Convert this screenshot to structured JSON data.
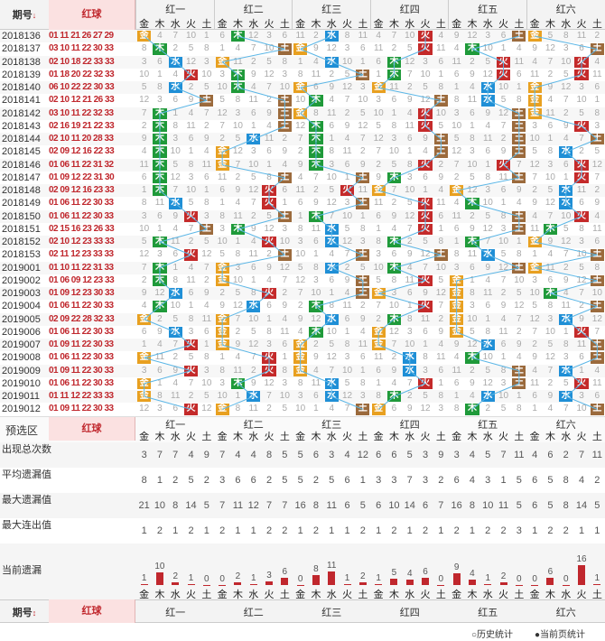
{
  "header": {
    "issue_label": "期号",
    "issue_sort_icon": "↓",
    "red_label": "红球",
    "groups": [
      "红一",
      "红二",
      "红三",
      "红四",
      "红五",
      "红六"
    ],
    "elements": [
      "金",
      "木",
      "水",
      "火",
      "土"
    ]
  },
  "issues": [
    "2018136",
    "2018137",
    "2018138",
    "2018139",
    "2018140",
    "2018141",
    "2018142",
    "2018143",
    "2018144",
    "2018145",
    "2018146",
    "2018147",
    "2018148",
    "2018149",
    "2018150",
    "2018151",
    "2018152",
    "2018153",
    "2019001",
    "2019002",
    "2019003",
    "2019004",
    "2019005",
    "2019006",
    "2019007",
    "2019008",
    "2019009",
    "2019010",
    "2019011",
    "2019012"
  ],
  "red_balls": [
    "01 11 21 26 27 29",
    "03 10 11 22 30 33",
    "02 10 18 22 33 33",
    "01 18 20 22 32 33",
    "06 10 22 22 30 33",
    "02 10 12 21 26 33",
    "03 10 11 22 32 33",
    "02 16 19 21 22 33",
    "02 10 11 20 28 33",
    "02 09 12 16 22 33",
    "01 06 11 22 31 32",
    "01 09 12 22 31 30",
    "02 09 12 16 23 33",
    "01 06 11 22 30 33",
    "01 06 11 22 30 33",
    "02 15 16 23 26 33",
    "02 10 12 23 33 33",
    "02 11 12 23 33 33",
    "01 10 11 22 31 33",
    "01 06 09 12 23 33",
    "01 09 12 23 30 33",
    "01 06 11 22 30 33",
    "02 09 22 28 32 33",
    "01 06 11 22 30 33",
    "01 09 11 22 30 33",
    "01 06 11 22 30 33",
    "01 09 11 22 30 33",
    "01 06 11 22 30 33",
    "01 11 12 22 33 33",
    "01 09 11 22 30 33"
  ],
  "presel": {
    "label": "预选区",
    "red_label": "红球"
  },
  "stats": {
    "labels": [
      "出现总次数",
      "平均遗漏值",
      "最大遗漏值",
      "最大连出值",
      "当前遗漏"
    ],
    "appear": [
      3,
      7,
      7,
      4,
      9,
      7,
      4,
      4,
      8,
      5,
      5,
      6,
      3,
      4,
      12,
      6,
      6,
      5,
      3,
      9,
      3,
      4,
      5,
      7,
      11,
      4,
      6,
      2,
      7,
      11
    ],
    "avg": [
      8,
      1,
      2,
      5,
      2,
      3,
      6,
      6,
      2,
      5,
      5,
      2,
      5,
      6,
      1,
      3,
      3,
      7,
      3,
      2,
      6,
      4,
      3,
      1,
      5,
      6,
      5,
      8,
      4,
      2
    ],
    "maxmiss": [
      21,
      10,
      8,
      14,
      5,
      7,
      11,
      12,
      7,
      7,
      16,
      8,
      11,
      6,
      5,
      6,
      10,
      14,
      6,
      7,
      16,
      8,
      10,
      11,
      5,
      6,
      5,
      8,
      14,
      5
    ],
    "maxcont": [
      1,
      2,
      1,
      2,
      1,
      2,
      1,
      1,
      2,
      2,
      1,
      2,
      1,
      1,
      2,
      1,
      2,
      1,
      2,
      1,
      2,
      1,
      2,
      2,
      3,
      1,
      2,
      2,
      1,
      1
    ],
    "current": [
      1,
      10,
      2,
      1,
      0,
      0,
      2,
      1,
      3,
      6,
      0,
      8,
      11,
      1,
      2,
      1,
      5,
      4,
      6,
      0,
      9,
      4,
      1,
      2,
      0,
      0,
      6,
      0,
      16,
      1
    ]
  },
  "footer": {
    "issue_label": "期号",
    "red_label": "红球",
    "hist_label": "历史统计",
    "page_label": "当前页统计"
  },
  "chart_data": {
    "type": "table",
    "title": "",
    "marks": [
      [
        0,
        0
      ],
      [
        0,
        1
      ],
      [
        0,
        2
      ],
      [
        0,
        3
      ],
      [
        0,
        4
      ],
      [
        0,
        0
      ],
      [
        1,
        1
      ],
      [
        1,
        4
      ],
      [
        1,
        0
      ],
      [
        1,
        3
      ],
      [
        1,
        1
      ],
      [
        1,
        4
      ],
      [
        2,
        2
      ],
      [
        2,
        0
      ],
      [
        2,
        2
      ],
      [
        2,
        1
      ],
      [
        2,
        3
      ],
      [
        2,
        3
      ],
      [
        3,
        3
      ],
      [
        3,
        1
      ],
      [
        3,
        4
      ],
      [
        3,
        1
      ],
      [
        3,
        3
      ],
      [
        3,
        3
      ],
      [
        4,
        2
      ],
      [
        4,
        1
      ],
      [
        4,
        0
      ],
      [
        4,
        0
      ],
      [
        4,
        2
      ],
      [
        4,
        0
      ],
      [
        5,
        4
      ],
      [
        5,
        4
      ],
      [
        5,
        1
      ],
      [
        5,
        4
      ],
      [
        5,
        2
      ],
      [
        5,
        0
      ],
      [
        6,
        1
      ],
      [
        6,
        4
      ],
      [
        6,
        0
      ],
      [
        6,
        3
      ],
      [
        6,
        4
      ],
      [
        6,
        0
      ],
      [
        7,
        1
      ],
      [
        7,
        4
      ],
      [
        7,
        1
      ],
      [
        7,
        3
      ],
      [
        7,
        4
      ],
      [
        7,
        3
      ],
      [
        8,
        1
      ],
      [
        8,
        2
      ],
      [
        8,
        1
      ],
      [
        8,
        4
      ],
      [
        8,
        4
      ],
      [
        8,
        4
      ],
      [
        9,
        1
      ],
      [
        9,
        0
      ],
      [
        9,
        1
      ],
      [
        9,
        4
      ],
      [
        9,
        4
      ],
      [
        9,
        2
      ],
      [
        10,
        1
      ],
      [
        10,
        0
      ],
      [
        10,
        1
      ],
      [
        10,
        3
      ],
      [
        10,
        3
      ],
      [
        10,
        3
      ],
      [
        11,
        1
      ],
      [
        11,
        4
      ],
      [
        11,
        4
      ],
      [
        11,
        1
      ],
      [
        11,
        4
      ],
      [
        11,
        3
      ],
      [
        12,
        1
      ],
      [
        12,
        3
      ],
      [
        12,
        3
      ],
      [
        12,
        0
      ],
      [
        12,
        0
      ],
      [
        12,
        2
      ],
      [
        13,
        2
      ],
      [
        13,
        3
      ],
      [
        13,
        4
      ],
      [
        13,
        3
      ],
      [
        13,
        1
      ],
      [
        13,
        2
      ],
      [
        14,
        3
      ],
      [
        14,
        4
      ],
      [
        14,
        1
      ],
      [
        14,
        3
      ],
      [
        14,
        4
      ],
      [
        14,
        3
      ],
      [
        15,
        4
      ],
      [
        15,
        1
      ],
      [
        15,
        2
      ],
      [
        15,
        3
      ],
      [
        15,
        4
      ],
      [
        15,
        1
      ],
      [
        16,
        1
      ],
      [
        16,
        3
      ],
      [
        16,
        2
      ],
      [
        16,
        1
      ],
      [
        16,
        1
      ],
      [
        16,
        0
      ],
      [
        17,
        3
      ],
      [
        17,
        4
      ],
      [
        17,
        4
      ],
      [
        17,
        4
      ],
      [
        17,
        2
      ],
      [
        17,
        4
      ],
      [
        18,
        1
      ],
      [
        18,
        0
      ],
      [
        18,
        2
      ],
      [
        18,
        1
      ],
      [
        18,
        4
      ],
      [
        18,
        0
      ],
      [
        19,
        1
      ],
      [
        19,
        0
      ],
      [
        19,
        4
      ],
      [
        19,
        3
      ],
      [
        19,
        0
      ],
      [
        19,
        4
      ],
      [
        20,
        2
      ],
      [
        20,
        3
      ],
      [
        20,
        4
      ],
      [
        20,
        0
      ],
      [
        20,
        0
      ],
      [
        20,
        1
      ],
      [
        21,
        1
      ],
      [
        21,
        2
      ],
      [
        21,
        1
      ],
      [
        21,
        3
      ],
      [
        21,
        0
      ],
      [
        21,
        4
      ],
      [
        22,
        0
      ],
      [
        22,
        0
      ],
      [
        22,
        2
      ],
      [
        22,
        1
      ],
      [
        22,
        0
      ],
      [
        22,
        2
      ],
      [
        23,
        2
      ],
      [
        23,
        0
      ],
      [
        23,
        1
      ],
      [
        23,
        0
      ],
      [
        23,
        0
      ],
      [
        23,
        3
      ],
      [
        24,
        3
      ],
      [
        24,
        0
      ],
      [
        24,
        0
      ],
      [
        24,
        0
      ],
      [
        24,
        2
      ],
      [
        24,
        4
      ],
      [
        25,
        0
      ],
      [
        25,
        3
      ],
      [
        25,
        0
      ],
      [
        25,
        2
      ],
      [
        25,
        1
      ],
      [
        25,
        4
      ],
      [
        26,
        3
      ],
      [
        26,
        3
      ],
      [
        26,
        0
      ],
      [
        26,
        2
      ],
      [
        26,
        4
      ],
      [
        26,
        2
      ],
      [
        27,
        0
      ],
      [
        27,
        1
      ],
      [
        27,
        2
      ],
      [
        27,
        3
      ],
      [
        27,
        4
      ],
      [
        27,
        3
      ],
      [
        28,
        0
      ],
      [
        28,
        2
      ],
      [
        28,
        2
      ],
      [
        28,
        1
      ],
      [
        28,
        2
      ],
      [
        28,
        2
      ],
      [
        29,
        3
      ],
      [
        29,
        0
      ],
      [
        29,
        4
      ],
      [
        29,
        0
      ],
      [
        29,
        1
      ],
      [
        29,
        4
      ]
    ]
  },
  "colors": {
    "金": "#e8a020",
    "木": "#1f9a3a",
    "水": "#1f8fd6",
    "火": "#c42a2a",
    "土": "#9b6a3c"
  }
}
